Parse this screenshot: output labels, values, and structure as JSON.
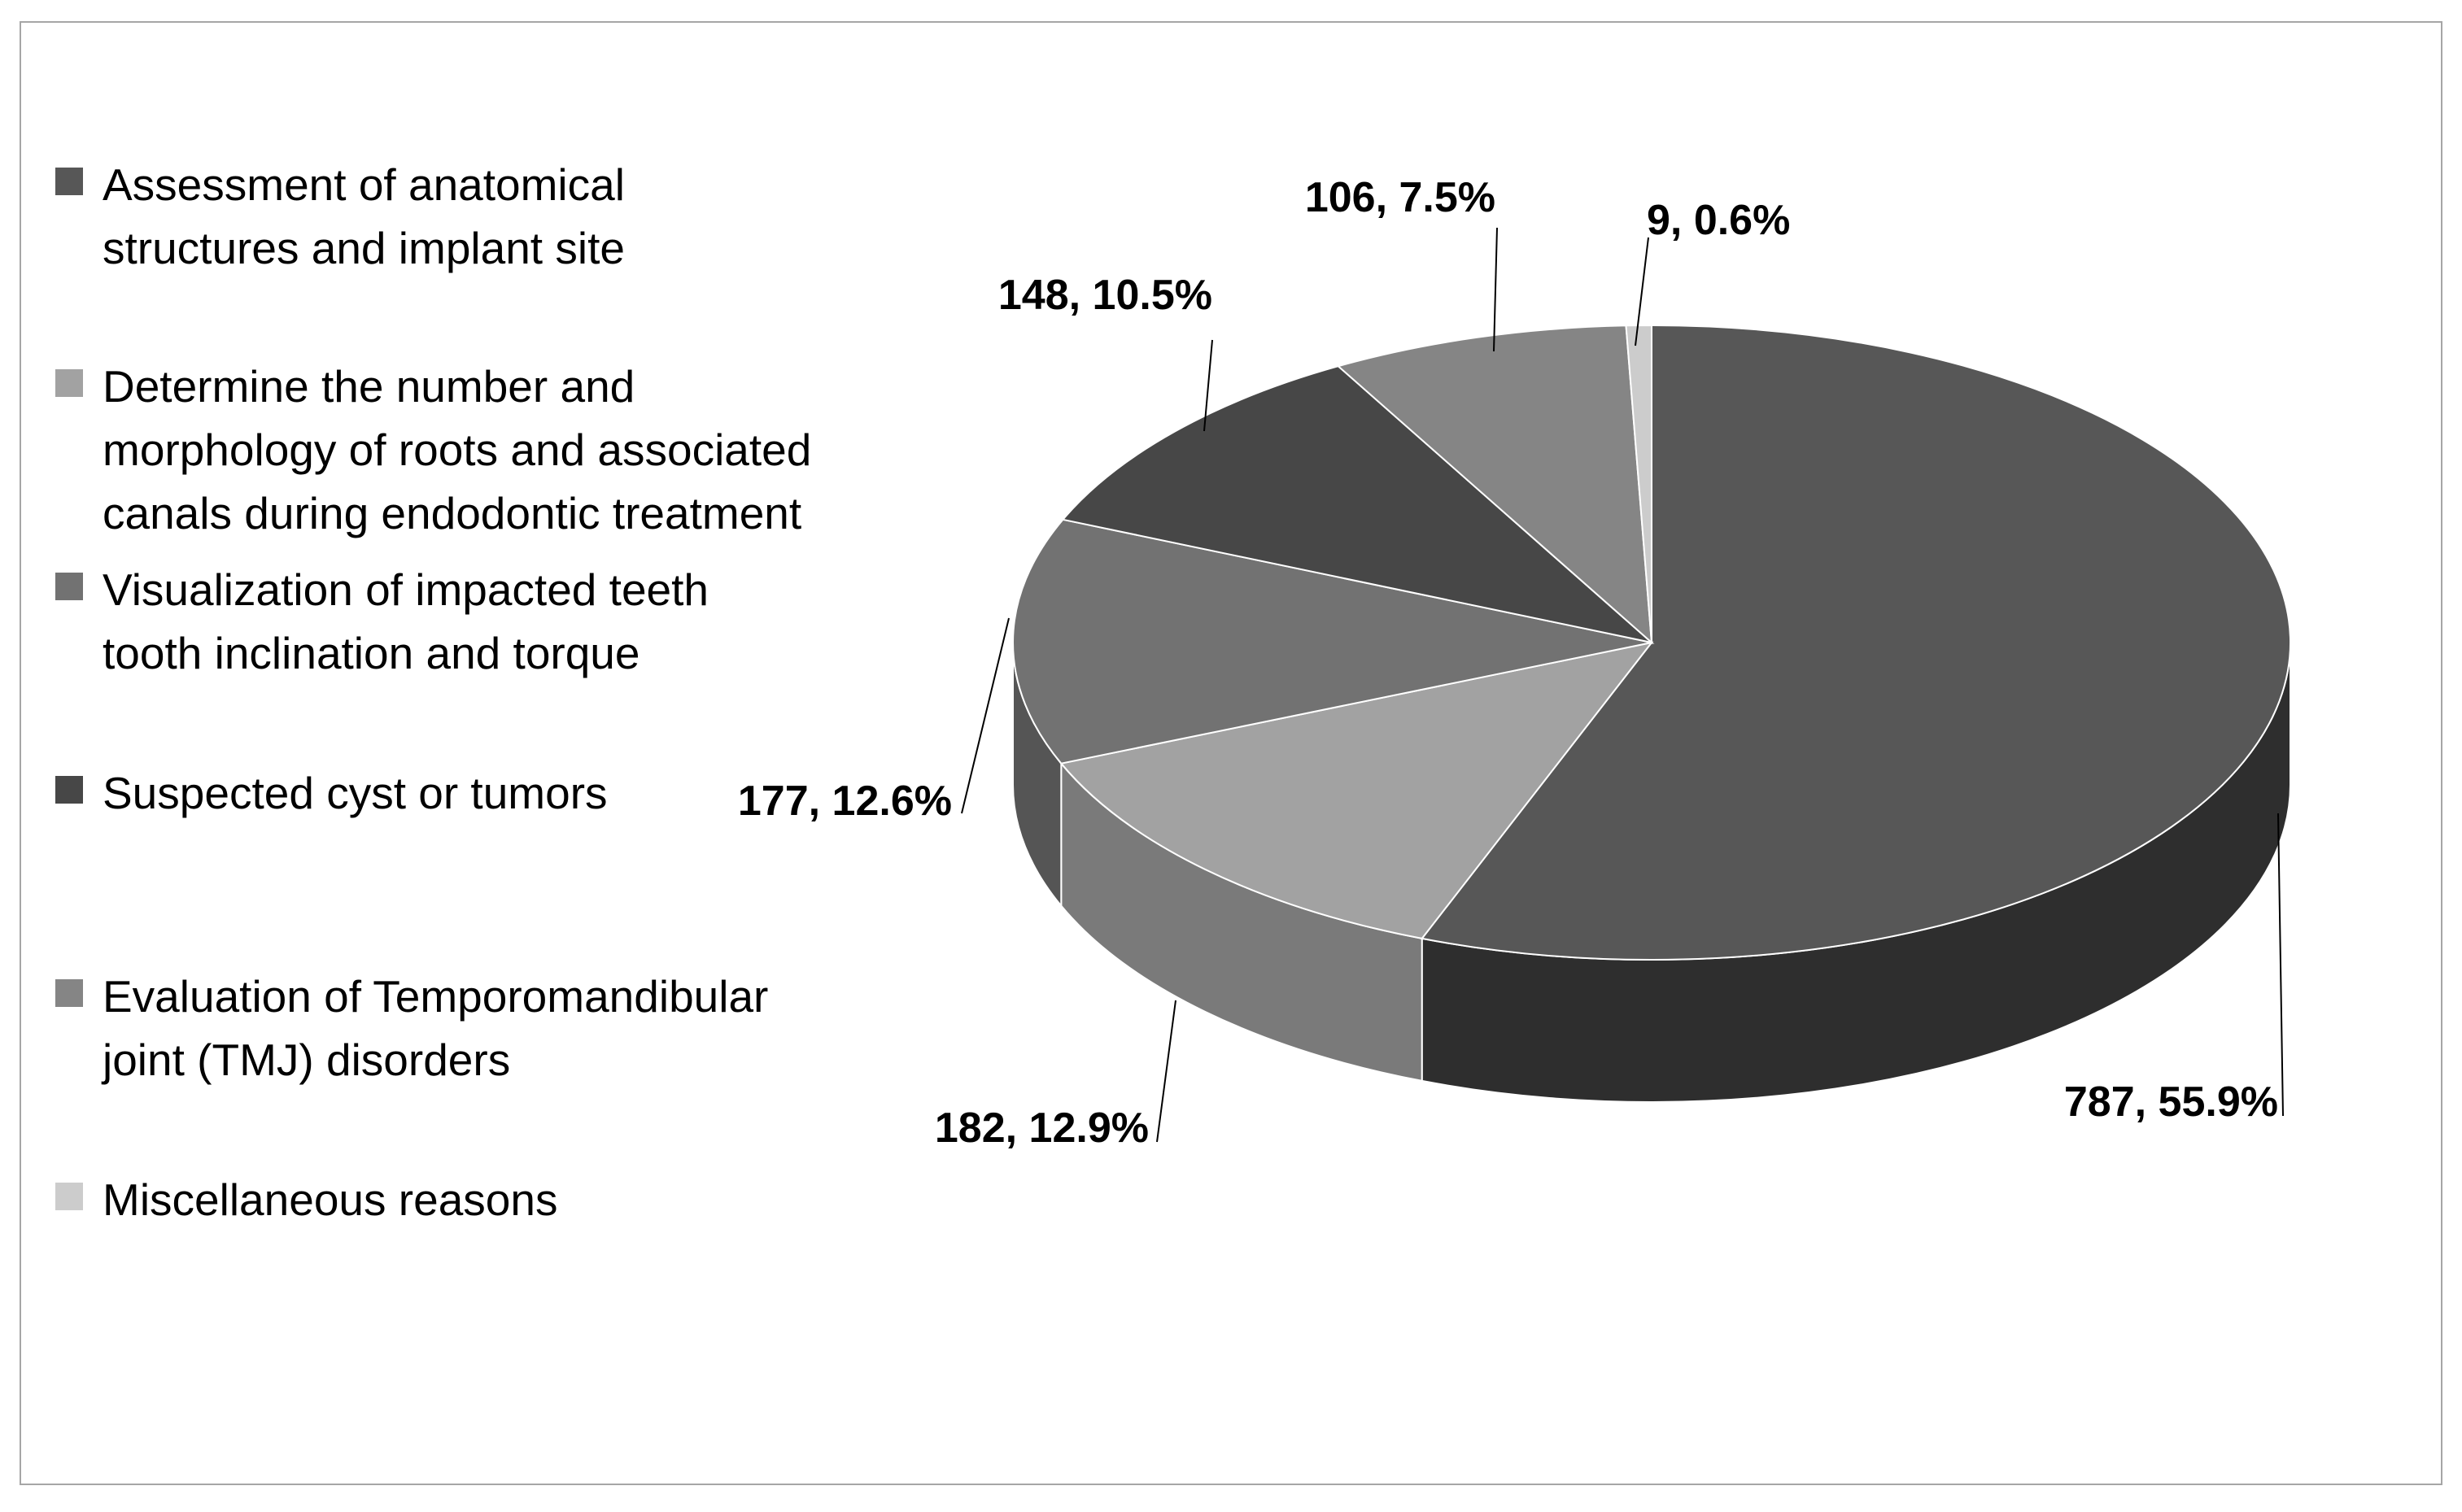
{
  "chart_data": {
    "type": "pie",
    "style": "3d",
    "title": "",
    "legend_position": "left",
    "slices": [
      {
        "label": "Assessment of anatomical\nstructures and implant site",
        "value": 787,
        "percent": 55.9,
        "data_label": "787, 55.9%",
        "top_color": "#575757",
        "side_color": "#2e2e2e",
        "legend_color": "#575757"
      },
      {
        "label": "Determine the number and\nmorphology of roots and associated\ncanals during endodontic treatment",
        "value": 182,
        "percent": 12.9,
        "data_label": "182, 12.9%",
        "top_color": "#a2a2a2",
        "side_color": "#7a7a7a",
        "legend_color": "#a2a2a2"
      },
      {
        "label": "Visualization of impacted teeth\ntooth inclination and torque",
        "value": 177,
        "percent": 12.6,
        "data_label": "177, 12.6%",
        "top_color": "#727272",
        "side_color": "#555555",
        "legend_color": "#727272"
      },
      {
        "label": "Suspected cyst or tumors",
        "value": 148,
        "percent": 10.5,
        "data_label": "148, 10.5%",
        "top_color": "#474747",
        "side_color": "#333333",
        "legend_color": "#474747"
      },
      {
        "label": "Evaluation of Temporomandibular\njoint (TMJ) disorders",
        "value": 106,
        "percent": 7.5,
        "data_label": "106, 7.5%",
        "top_color": "#858585",
        "side_color": "#666666",
        "legend_color": "#858585"
      },
      {
        "label": "Miscellaneous reasons",
        "value": 9,
        "percent": 0.6,
        "data_label": "9, 0.6%",
        "top_color": "#cccccc",
        "side_color": "#aaaaaa",
        "legend_color": "#cccccc"
      }
    ]
  }
}
